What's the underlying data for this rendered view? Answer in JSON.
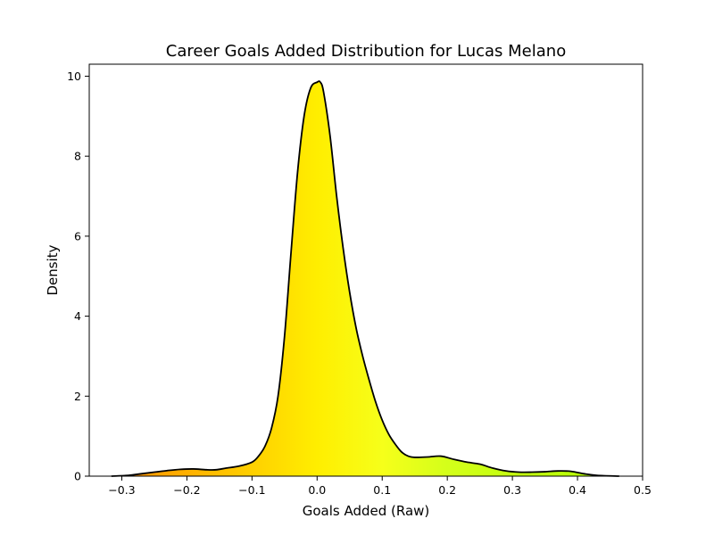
{
  "chart_data": {
    "type": "area",
    "title": "Career Goals Added Distribution for Lucas Melano",
    "xlabel": "Goals Added (Raw)",
    "ylabel": "Density",
    "xlim": [
      -0.35,
      0.5
    ],
    "ylim": [
      0,
      10.3
    ],
    "x_ticks": [
      -0.3,
      -0.2,
      -0.1,
      0.0,
      0.1,
      0.2,
      0.3,
      0.4,
      0.5
    ],
    "x_tick_labels": [
      "−0.3",
      "−0.2",
      "−0.1",
      "0.0",
      "0.1",
      "0.2",
      "0.3",
      "0.4",
      "0.5"
    ],
    "y_ticks": [
      0,
      2,
      4,
      6,
      8,
      10
    ],
    "y_tick_labels": [
      "0",
      "2",
      "4",
      "6",
      "8",
      "10"
    ],
    "grid": false,
    "legend": "none",
    "series": [
      {
        "x": [
          -0.316,
          -0.29,
          -0.27,
          -0.25,
          -0.23,
          -0.21,
          -0.19,
          -0.17,
          -0.155,
          -0.14,
          -0.12,
          -0.1,
          -0.09,
          -0.08,
          -0.07,
          -0.06,
          -0.05,
          -0.04,
          -0.03,
          -0.02,
          -0.01,
          0.0,
          0.005,
          0.01,
          0.02,
          0.03,
          0.04,
          0.05,
          0.06,
          0.07,
          0.08,
          0.09,
          0.1,
          0.11,
          0.12,
          0.13,
          0.14,
          0.15,
          0.17,
          0.19,
          0.21,
          0.23,
          0.25,
          0.27,
          0.29,
          0.31,
          0.33,
          0.35,
          0.37,
          0.39,
          0.41,
          0.43,
          0.464
        ],
        "y": [
          0.0,
          0.02,
          0.06,
          0.1,
          0.14,
          0.17,
          0.18,
          0.16,
          0.16,
          0.2,
          0.25,
          0.35,
          0.5,
          0.75,
          1.2,
          2.0,
          3.5,
          5.6,
          7.6,
          9.0,
          9.7,
          9.85,
          9.85,
          9.6,
          8.5,
          7.0,
          5.7,
          4.6,
          3.7,
          3.0,
          2.4,
          1.85,
          1.4,
          1.05,
          0.8,
          0.6,
          0.5,
          0.47,
          0.48,
          0.5,
          0.42,
          0.35,
          0.3,
          0.2,
          0.13,
          0.1,
          0.1,
          0.11,
          0.13,
          0.12,
          0.06,
          0.02,
          0.0
        ]
      }
    ],
    "fill_gradient": {
      "colormap": "Wistia-like",
      "stops": [
        {
          "x": -0.316,
          "color": "#ff8c00"
        },
        {
          "x": -0.1,
          "color": "#ffd000"
        },
        {
          "x": 0.0,
          "color": "#ffee00"
        },
        {
          "x": 0.1,
          "color": "#f6ff1a"
        },
        {
          "x": 0.2,
          "color": "#d4ff1a"
        },
        {
          "x": 0.3,
          "color": "#c4ff10"
        },
        {
          "x": 0.464,
          "color": "#b0ff00"
        }
      ]
    },
    "line_color": "#000000"
  }
}
